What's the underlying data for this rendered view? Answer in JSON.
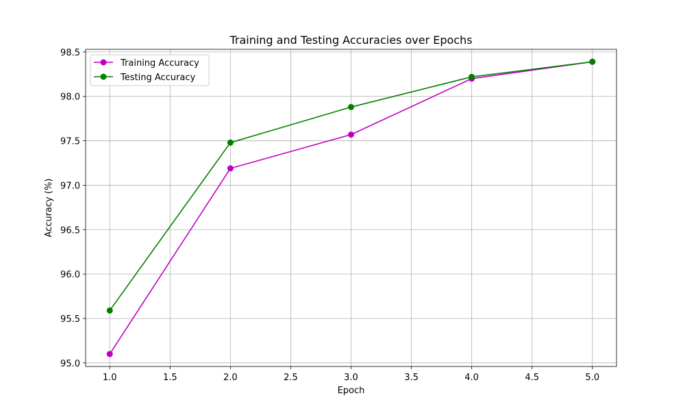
{
  "chart_data": {
    "type": "line",
    "title": "Training and Testing Accuracies over Epochs",
    "xlabel": "Epoch",
    "ylabel": "Accuracy (%)",
    "x": [
      1,
      2,
      3,
      4,
      5
    ],
    "xlim": [
      0.8,
      5.2
    ],
    "ylim": [
      94.96,
      98.53
    ],
    "xticks": [
      1.0,
      1.5,
      2.0,
      2.5,
      3.0,
      3.5,
      4.0,
      4.5,
      5.0
    ],
    "xtick_labels": [
      "1.0",
      "1.5",
      "2.0",
      "2.5",
      "3.0",
      "3.5",
      "4.0",
      "4.5",
      "5.0"
    ],
    "yticks": [
      95.0,
      95.5,
      96.0,
      96.5,
      97.0,
      97.5,
      98.0,
      98.5
    ],
    "ytick_labels": [
      "95.0",
      "95.5",
      "96.0",
      "96.5",
      "97.0",
      "97.5",
      "98.0",
      "98.5"
    ],
    "grid": true,
    "legend_position": "upper-left",
    "series": [
      {
        "name": "Training Accuracy",
        "color": "#bf00bf",
        "marker": "circle",
        "values": [
          95.1,
          97.19,
          97.57,
          98.2,
          98.39
        ]
      },
      {
        "name": "Testing Accuracy",
        "color": "#008000",
        "marker": "circle",
        "values": [
          95.59,
          97.48,
          97.88,
          98.22,
          98.39
        ]
      }
    ]
  }
}
